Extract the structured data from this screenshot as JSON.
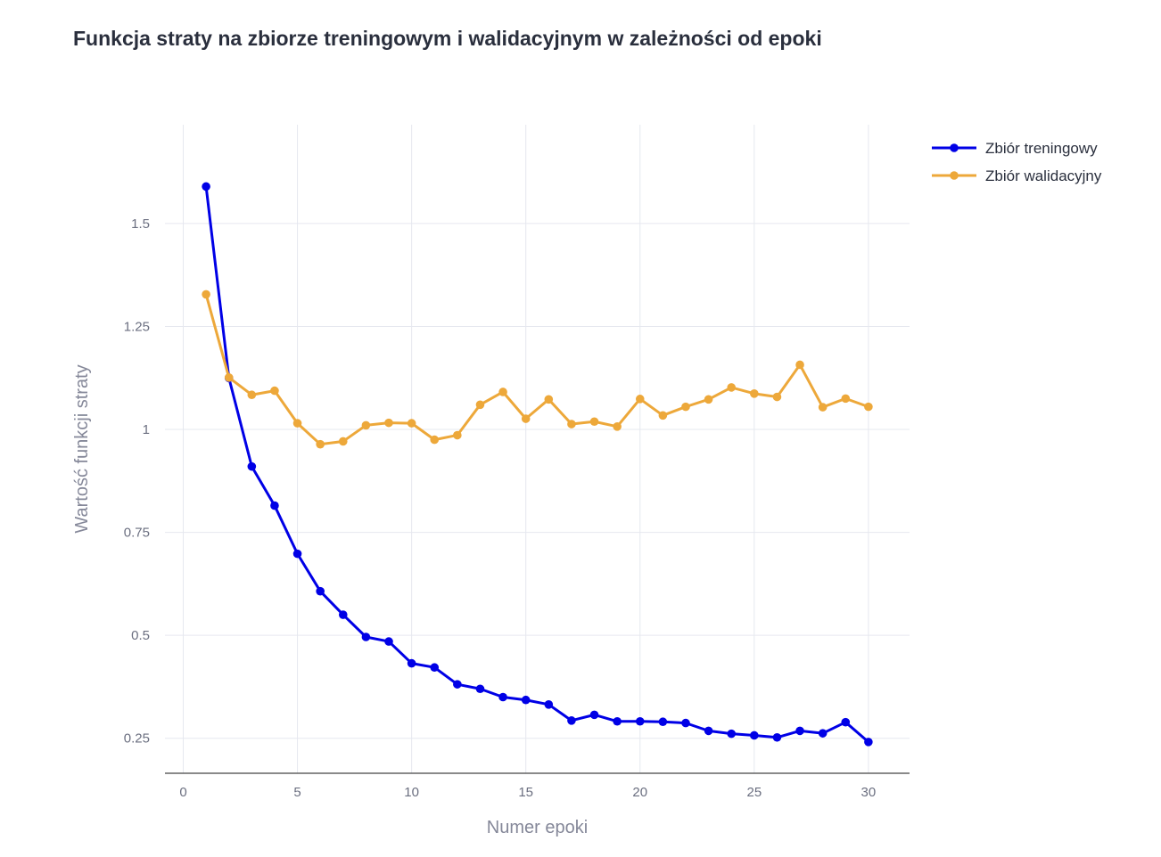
{
  "chart_data": {
    "type": "line",
    "title": "Funkcja straty na zbiorze treningowym i walidacyjnym w zależności od epoki",
    "xlabel": "Numer epoki",
    "ylabel": "Wartość funkcji straty",
    "xlim": [
      -0.8,
      31.8
    ],
    "ylim": [
      0.165,
      1.74
    ],
    "xticks": [
      0,
      5,
      10,
      15,
      20,
      25,
      30
    ],
    "xtick_labels": [
      "0",
      "5",
      "10",
      "15",
      "20",
      "25",
      "30"
    ],
    "yticks": [
      0.25,
      0.5,
      0.75,
      1,
      1.25,
      1.5
    ],
    "ytick_labels": [
      "0.25",
      "0.5",
      "0.75",
      "1",
      "1.25",
      "1.5"
    ],
    "grid": true,
    "legend_position": "top-right",
    "x": [
      1,
      2,
      3,
      4,
      5,
      6,
      7,
      8,
      9,
      10,
      11,
      12,
      13,
      14,
      15,
      16,
      17,
      18,
      19,
      20,
      21,
      22,
      23,
      24,
      25,
      26,
      27,
      28,
      29,
      30
    ],
    "series": [
      {
        "name": "Zbiór treningowy",
        "color": "#0000e6",
        "values": [
          1.59,
          1.125,
          0.91,
          0.815,
          0.698,
          0.607,
          0.55,
          0.496,
          0.485,
          0.432,
          0.422,
          0.381,
          0.37,
          0.35,
          0.343,
          0.332,
          0.293,
          0.307,
          0.291,
          0.291,
          0.29,
          0.287,
          0.268,
          0.261,
          0.257,
          0.252,
          0.268,
          0.262,
          0.289,
          0.241
        ]
      },
      {
        "name": "Zbiór walidacyjny",
        "color": "#eda83a",
        "values": [
          1.328,
          1.126,
          1.084,
          1.094,
          1.015,
          0.964,
          0.971,
          1.01,
          1.016,
          1.015,
          0.975,
          0.986,
          1.06,
          1.091,
          1.026,
          1.073,
          1.013,
          1.019,
          1.007,
          1.074,
          1.034,
          1.055,
          1.073,
          1.102,
          1.087,
          1.079,
          1.157,
          1.054,
          1.075,
          1.055
        ]
      }
    ]
  }
}
